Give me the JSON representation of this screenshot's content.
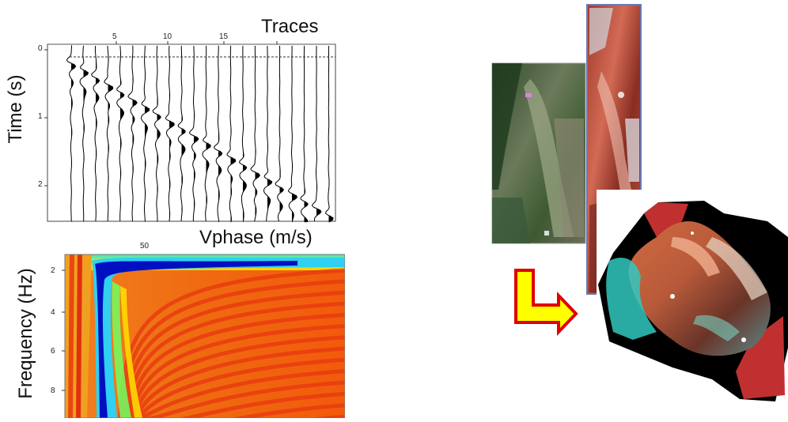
{
  "seismic_panel": {
    "title": "Traces",
    "ylabel": "Time (s)",
    "x_ticks": [
      "5",
      "10",
      "15"
    ],
    "y_ticks": [
      "0",
      "1",
      "2"
    ]
  },
  "dispersion_panel": {
    "title": "Vphase (m/s)",
    "ylabel": "Frequency (Hz)",
    "x_ticks": [
      "50"
    ],
    "y_ticks": [
      "2",
      "4",
      "6",
      "8"
    ]
  },
  "photos": {
    "left_strip": "aerial-photo-green",
    "middle_strip": "aerial-photo-false-color",
    "model": "3d-terrain-model",
    "arrow_colors": {
      "fill": "#ffff00",
      "stroke": "#e00000"
    }
  }
}
